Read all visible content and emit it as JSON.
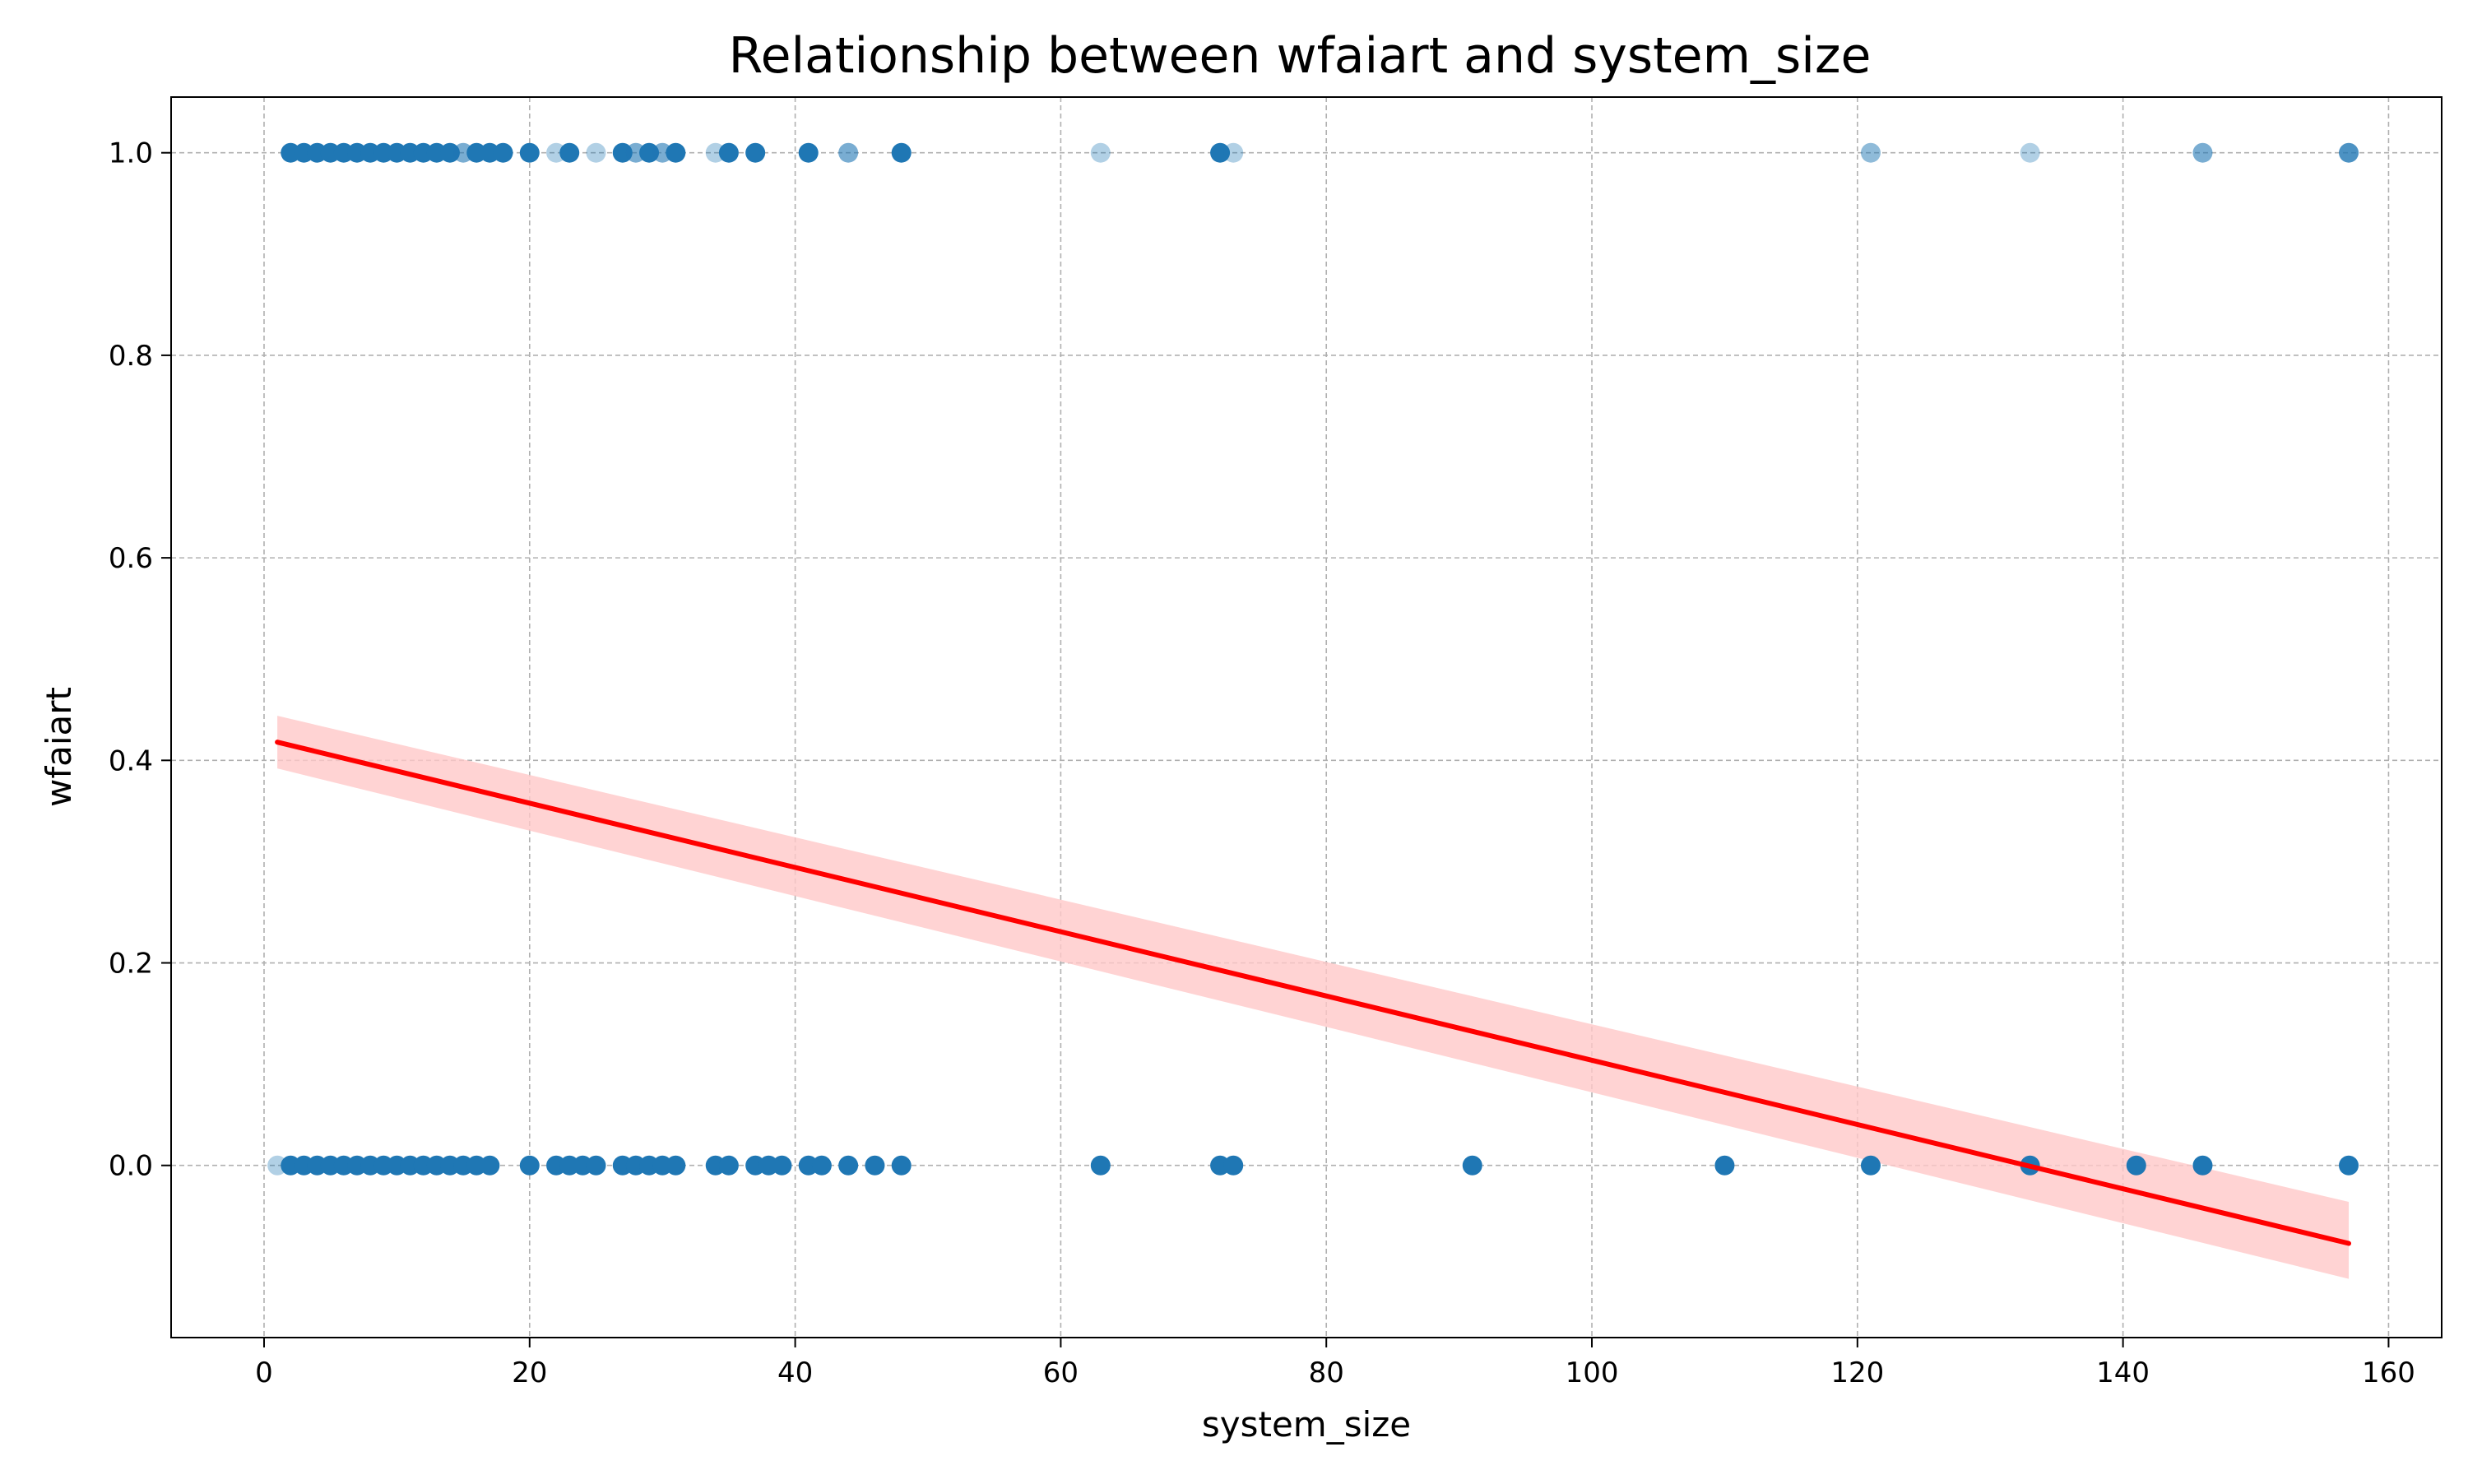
{
  "chart_data": {
    "type": "scatter",
    "title": "Relationship between wfaiart and system_size",
    "xlabel": "system_size",
    "ylabel": "wfaiart",
    "xlim": [
      -7,
      164
    ],
    "ylim": [
      -0.17,
      1.055
    ],
    "xticks": [
      0,
      20,
      40,
      60,
      80,
      100,
      120,
      140,
      160
    ],
    "xtick_labels": [
      "0",
      "20",
      "40",
      "60",
      "80",
      "100",
      "120",
      "140",
      "160"
    ],
    "yticks": [
      0.0,
      0.2,
      0.4,
      0.6,
      0.8,
      1.0
    ],
    "ytick_labels": [
      "0.0",
      "0.2",
      "0.4",
      "0.6",
      "0.8",
      "1.0"
    ],
    "grid": true,
    "legend": "none",
    "colors": {
      "points": "#1f77b4",
      "regression_line": "#ff0000",
      "confidence_band": "#ffc8c8",
      "grid": "#b0b0b0"
    },
    "series": [
      {
        "kind": "points",
        "y": 1.0,
        "x": [
          2,
          3,
          4,
          5,
          6,
          7,
          8,
          9,
          10,
          11,
          12,
          13,
          14,
          15,
          16,
          17,
          18,
          20,
          22,
          23,
          25,
          27,
          28,
          29,
          30,
          31,
          34,
          35,
          37,
          41,
          44,
          48,
          63,
          72,
          73,
          121,
          133,
          146,
          157
        ],
        "opacity": [
          1,
          1,
          1,
          1,
          1,
          1,
          1,
          1,
          1,
          1,
          1,
          1,
          1,
          0.6,
          1,
          1,
          1,
          1,
          0.35,
          1,
          0.35,
          1,
          0.6,
          1,
          0.6,
          1,
          0.35,
          1,
          1,
          1,
          0.6,
          1,
          0.35,
          1,
          0.35,
          0.5,
          0.35,
          0.6,
          0.8
        ]
      },
      {
        "kind": "points",
        "y": 0.0,
        "x": [
          1,
          2,
          3,
          4,
          5,
          6,
          7,
          8,
          9,
          10,
          11,
          12,
          13,
          14,
          15,
          16,
          17,
          20,
          22,
          23,
          24,
          25,
          27,
          28,
          29,
          30,
          31,
          34,
          35,
          37,
          38,
          39,
          41,
          42,
          44,
          46,
          48,
          63,
          72,
          73,
          91,
          110,
          121,
          133,
          141,
          146,
          157
        ],
        "opacity": [
          0.35,
          1,
          1,
          1,
          1,
          1,
          1,
          1,
          1,
          1,
          1,
          1,
          1,
          1,
          1,
          1,
          1,
          1,
          1,
          1,
          1,
          1,
          1,
          1,
          1,
          1,
          1,
          1,
          1,
          1,
          1,
          1,
          1,
          1,
          1,
          1,
          1,
          1,
          1,
          1,
          1,
          1,
          1,
          1,
          1,
          1,
          1
        ]
      },
      {
        "kind": "regression",
        "x": [
          1,
          157
        ],
        "y": [
          0.418,
          -0.077
        ],
        "ci_lower": [
          0.392,
          -0.112
        ],
        "ci_upper": [
          0.444,
          -0.036
        ]
      }
    ]
  }
}
